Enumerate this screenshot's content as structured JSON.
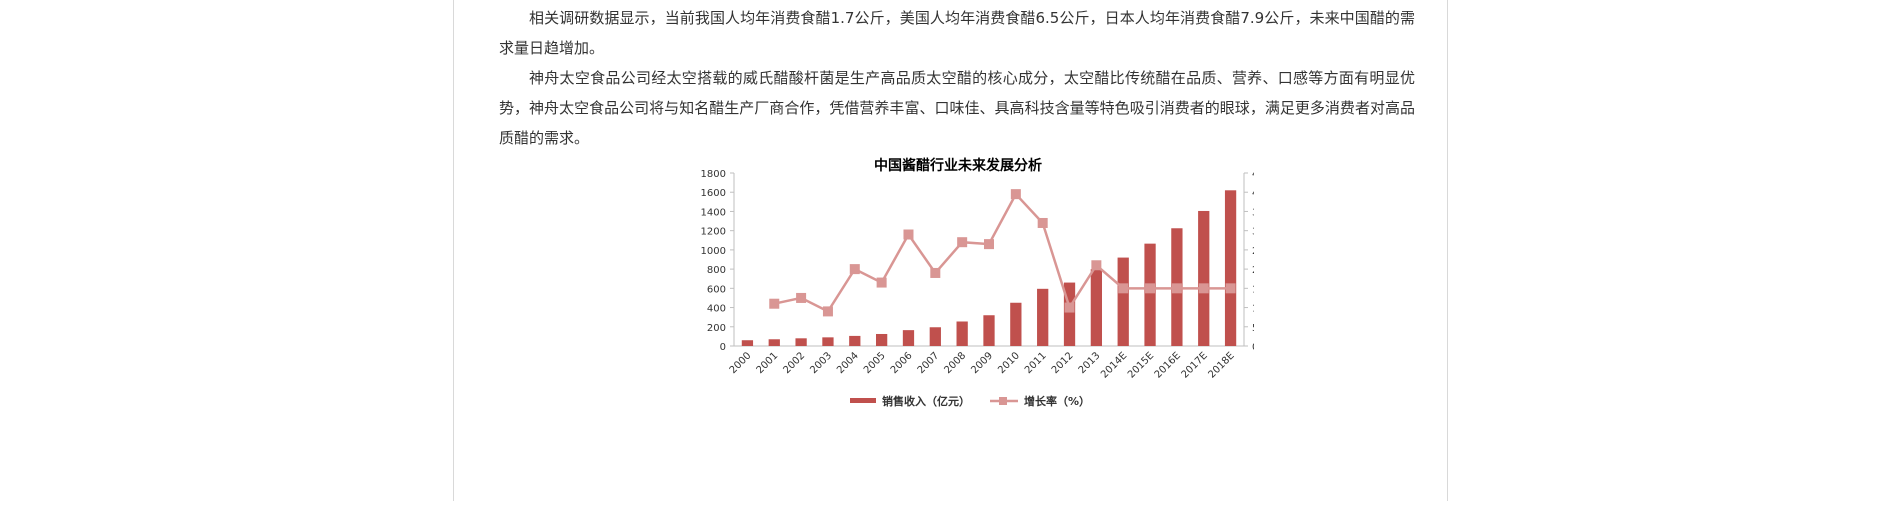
{
  "article": {
    "paragraphs": [
      "相关调研数据显示，当前我国人均年消费食醋1.7公斤，美国人均年消费食醋6.5公斤，日本人均年消费食醋7.9公斤，未来中国醋的需求量日趋增加。",
      "神舟太空食品公司经太空搭载的威氏醋酸杆菌是生产高品质太空醋的核心成分，太空醋比传统醋在品质、营养、口感等方面有明显优势，神舟太空食品公司将与知名醋生产厂商合作，凭借营养丰富、口味佳、具高科技含量等特色吸引消费者的眼球，满足更多消费者对高品质醋的需求。"
    ]
  },
  "chart_data": {
    "type": "bar",
    "title": "中国酱醋行业未来发展分析",
    "categories": [
      "2000",
      "2001",
      "2002",
      "2003",
      "2004",
      "2005",
      "2006",
      "2007",
      "2008",
      "2009",
      "2010",
      "2011",
      "2012",
      "2013",
      "2014E",
      "2015E",
      "2016E",
      "2017E",
      "2018E"
    ],
    "series": [
      {
        "name": "销售收入（亿元）",
        "type": "bar",
        "axis": "left",
        "color": "#c0504d",
        "values": [
          60,
          70,
          80,
          90,
          105,
          125,
          165,
          195,
          255,
          320,
          450,
          595,
          660,
          800,
          920,
          1065,
          1225,
          1405,
          1620
        ]
      },
      {
        "name": "增长率（%）",
        "type": "line",
        "axis": "right",
        "color": "#d99694",
        "values": [
          null,
          11,
          12.5,
          9,
          20,
          16.5,
          29,
          19,
          27,
          26.5,
          39.5,
          32,
          10,
          21,
          15,
          15,
          15,
          15,
          15
        ]
      }
    ],
    "y_left": {
      "min": 0,
      "max": 1800,
      "step": 200
    },
    "y_right": {
      "min": 0,
      "max": 45,
      "step": 5,
      "suffix": "%"
    },
    "grid": false,
    "legend": "bottom"
  }
}
